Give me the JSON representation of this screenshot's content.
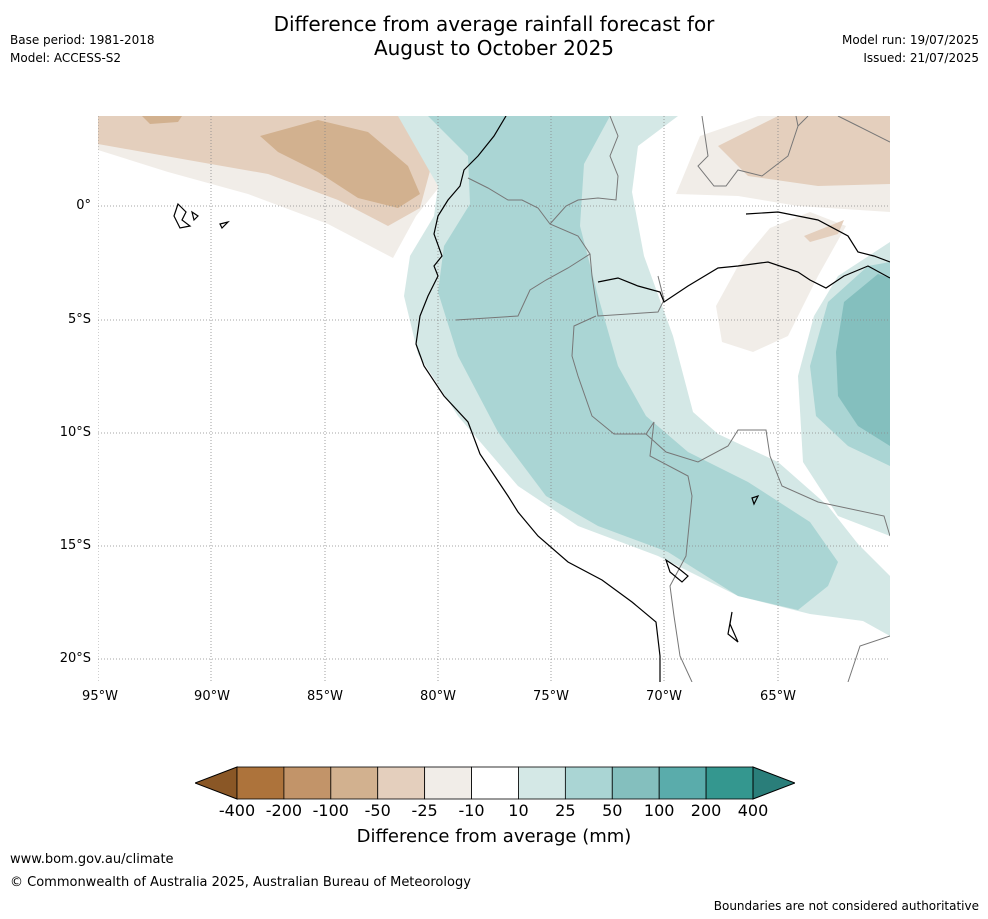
{
  "title_line1": "Difference from average rainfall forecast for",
  "title_line2": "August to October 2025",
  "base_period": "Base period: 1981-2018",
  "model": "Model: ACCESS-S2",
  "model_run": "Model run: 19/07/2025",
  "issued": "Issued: 21/07/2025",
  "lat_labels": [
    "0°",
    "5°S",
    "10°S",
    "15°S",
    "20°S"
  ],
  "lon_labels": [
    "95°W",
    "90°W",
    "85°W",
    "80°W",
    "75°W",
    "70°W",
    "65°W"
  ],
  "colorbar": {
    "ticks": [
      "-400",
      "-200",
      "-100",
      "-50",
      "-25",
      "-10",
      "10",
      "25",
      "50",
      "100",
      "200",
      "400"
    ],
    "colors": [
      "#8a5726",
      "#ad733b",
      "#c29469",
      "#d2b18f",
      "#e4cfbd",
      "#f1ede8",
      "#ffffff",
      "#d4e8e6",
      "#aad5d4",
      "#84bfbe",
      "#5aacab",
      "#34978f",
      "#2a7e7a"
    ],
    "label": "Difference from average (mm)"
  },
  "footer": {
    "website": "www.bom.gov.au/climate",
    "copyright": "© Commonwealth of Australia 2025, Australian Bureau of Meteorology",
    "disclaimer": "Boundaries are not considered authoritative"
  }
}
